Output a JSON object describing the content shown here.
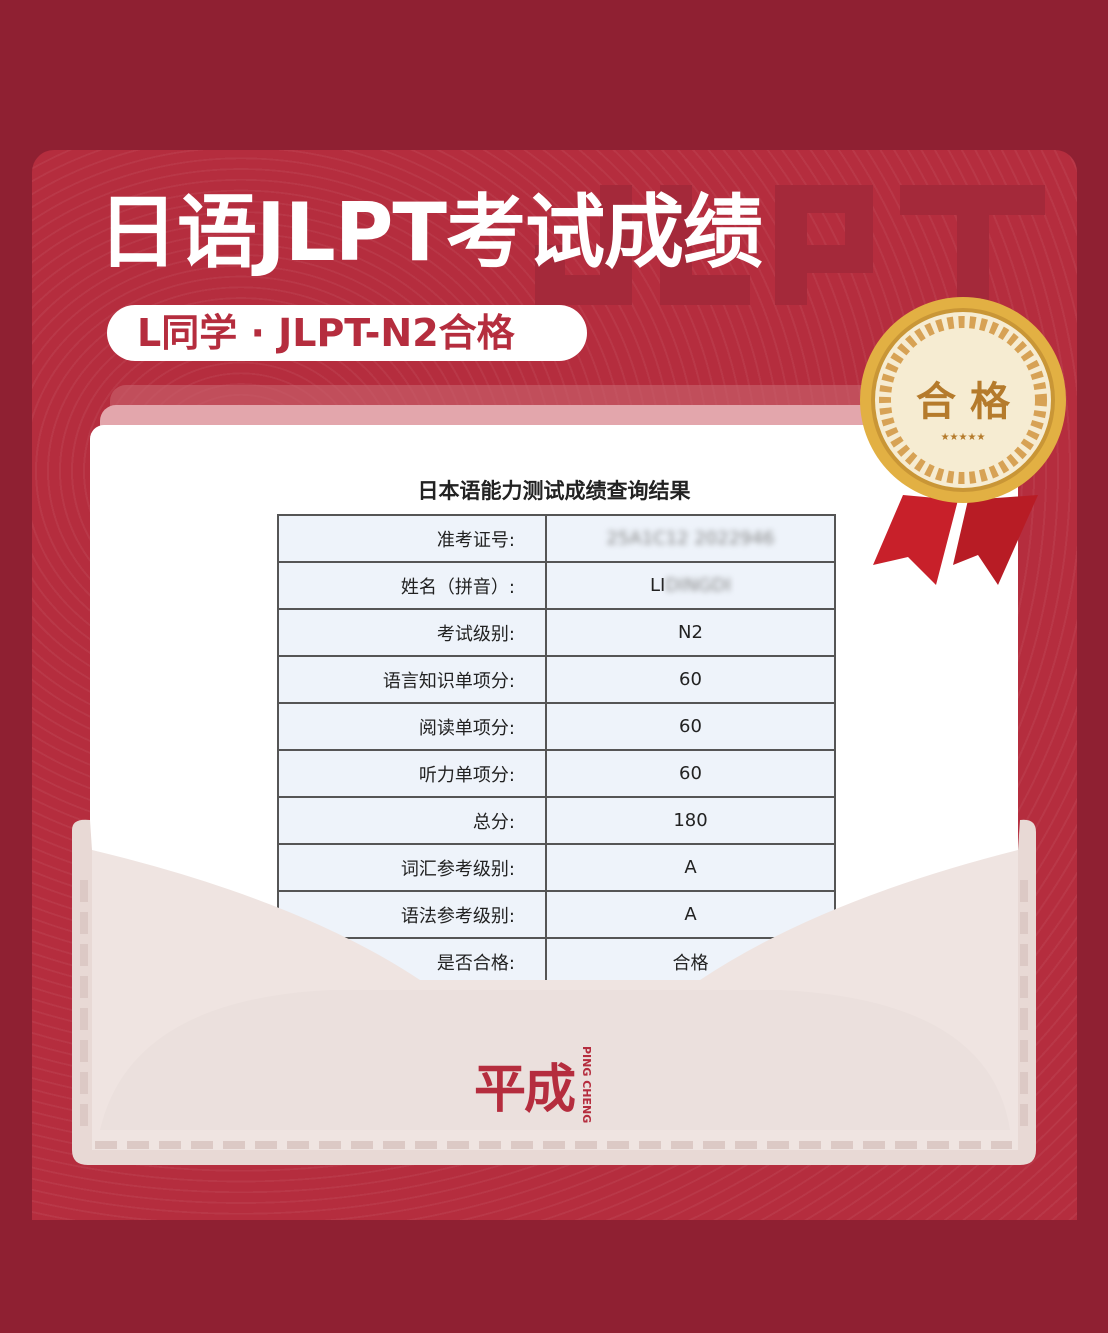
{
  "header": {
    "title": "日语JLPT考试成绩",
    "watermark": "JLPT",
    "subtitle": "L同学 · JLPT-N2合格"
  },
  "result": {
    "title": "日本语能力测试成绩查询结果",
    "rows": [
      {
        "label": "准考证号:",
        "value": "25A1C12 2022946",
        "blurred": true
      },
      {
        "label": "姓名（拼音）:",
        "value": "LI",
        "blurred_suffix": "DINGDI"
      },
      {
        "label": "考试级别:",
        "value": "N2"
      },
      {
        "label": "语言知识单项分:",
        "value": "60"
      },
      {
        "label": "阅读单项分:",
        "value": "60"
      },
      {
        "label": "听力单项分:",
        "value": "60"
      },
      {
        "label": "总分:",
        "value": "180"
      },
      {
        "label": "词汇参考级别:",
        "value": "A"
      },
      {
        "label": "语法参考级别:",
        "value": "A"
      },
      {
        "label": "是否合格:",
        "value": "合格"
      }
    ]
  },
  "medal": {
    "text": "合 格",
    "stars": "★★★★★",
    "colors": {
      "gold": "#e2b043",
      "ribbon": "#c8202a"
    }
  },
  "logo": {
    "cn": "平成",
    "en_1": "CHENG",
    "en_2": "PING"
  },
  "colors": {
    "background": "#8f2032",
    "card": "#b52d3e",
    "envelope": "#ede2df"
  }
}
